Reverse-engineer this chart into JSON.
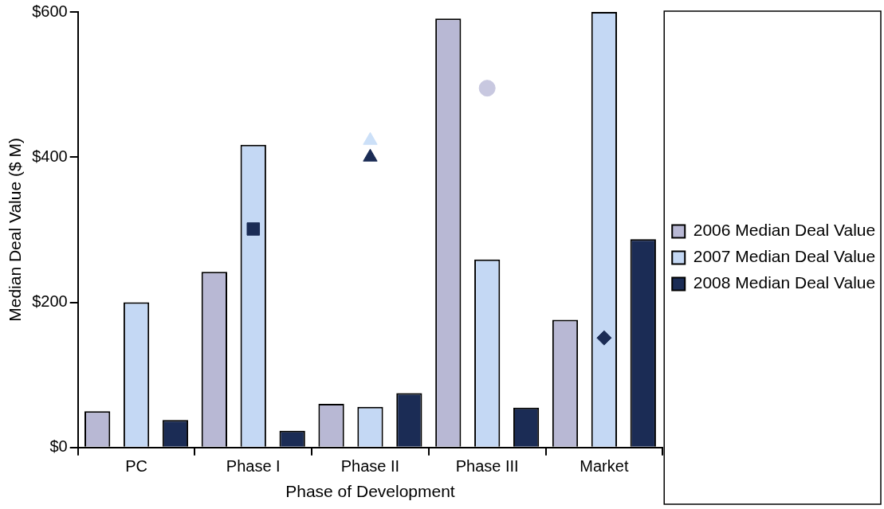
{
  "chart_data": {
    "type": "bar",
    "xlabel": "Phase of Development",
    "ylabel": "Median Deal Value ($ M)",
    "categories": [
      "PC",
      "Phase I",
      "Phase II",
      "Phase III",
      "Market"
    ],
    "series": [
      {
        "name": "2006 Median Deal Value",
        "color": "#b8b8d4",
        "values": [
          50,
          242,
          60,
          591,
          176
        ]
      },
      {
        "name": "2007 Median Deal Value",
        "color": "#c4d8f4",
        "values": [
          200,
          417,
          56,
          259,
          600
        ]
      },
      {
        "name": "2008 Median Deal Value",
        "color": "#1b2c55",
        "values": [
          38,
          23,
          75,
          55,
          287
        ]
      },
      {
        "type": "scatter",
        "marker": "circle",
        "color": "#c8c8e0",
        "x": [
          "Phase III"
        ],
        "values": [
          495
        ]
      },
      {
        "type": "scatter",
        "marker": "triangle",
        "color": "#cce0f8",
        "x": [
          "Phase II"
        ],
        "values": [
          423
        ]
      },
      {
        "type": "scatter",
        "marker": "square",
        "color": "#1b2c55",
        "x": [
          "Phase I"
        ],
        "values": [
          301
        ]
      },
      {
        "type": "scatter",
        "marker": "triangle",
        "color": "#1b2c55",
        "x": [
          "Phase II"
        ],
        "values": [
          400
        ]
      },
      {
        "type": "scatter",
        "marker": "diamond",
        "color": "#1b2c55",
        "x": [
          "Market"
        ],
        "values": [
          151
        ]
      }
    ],
    "ylim": [
      0,
      600
    ],
    "yticks": [
      {
        "value": 0,
        "label": "$0"
      },
      {
        "value": 200,
        "label": "$200"
      },
      {
        "value": 400,
        "label": "$400"
      },
      {
        "value": 600,
        "label": "$600"
      }
    ],
    "grid": false,
    "legend": "right"
  }
}
